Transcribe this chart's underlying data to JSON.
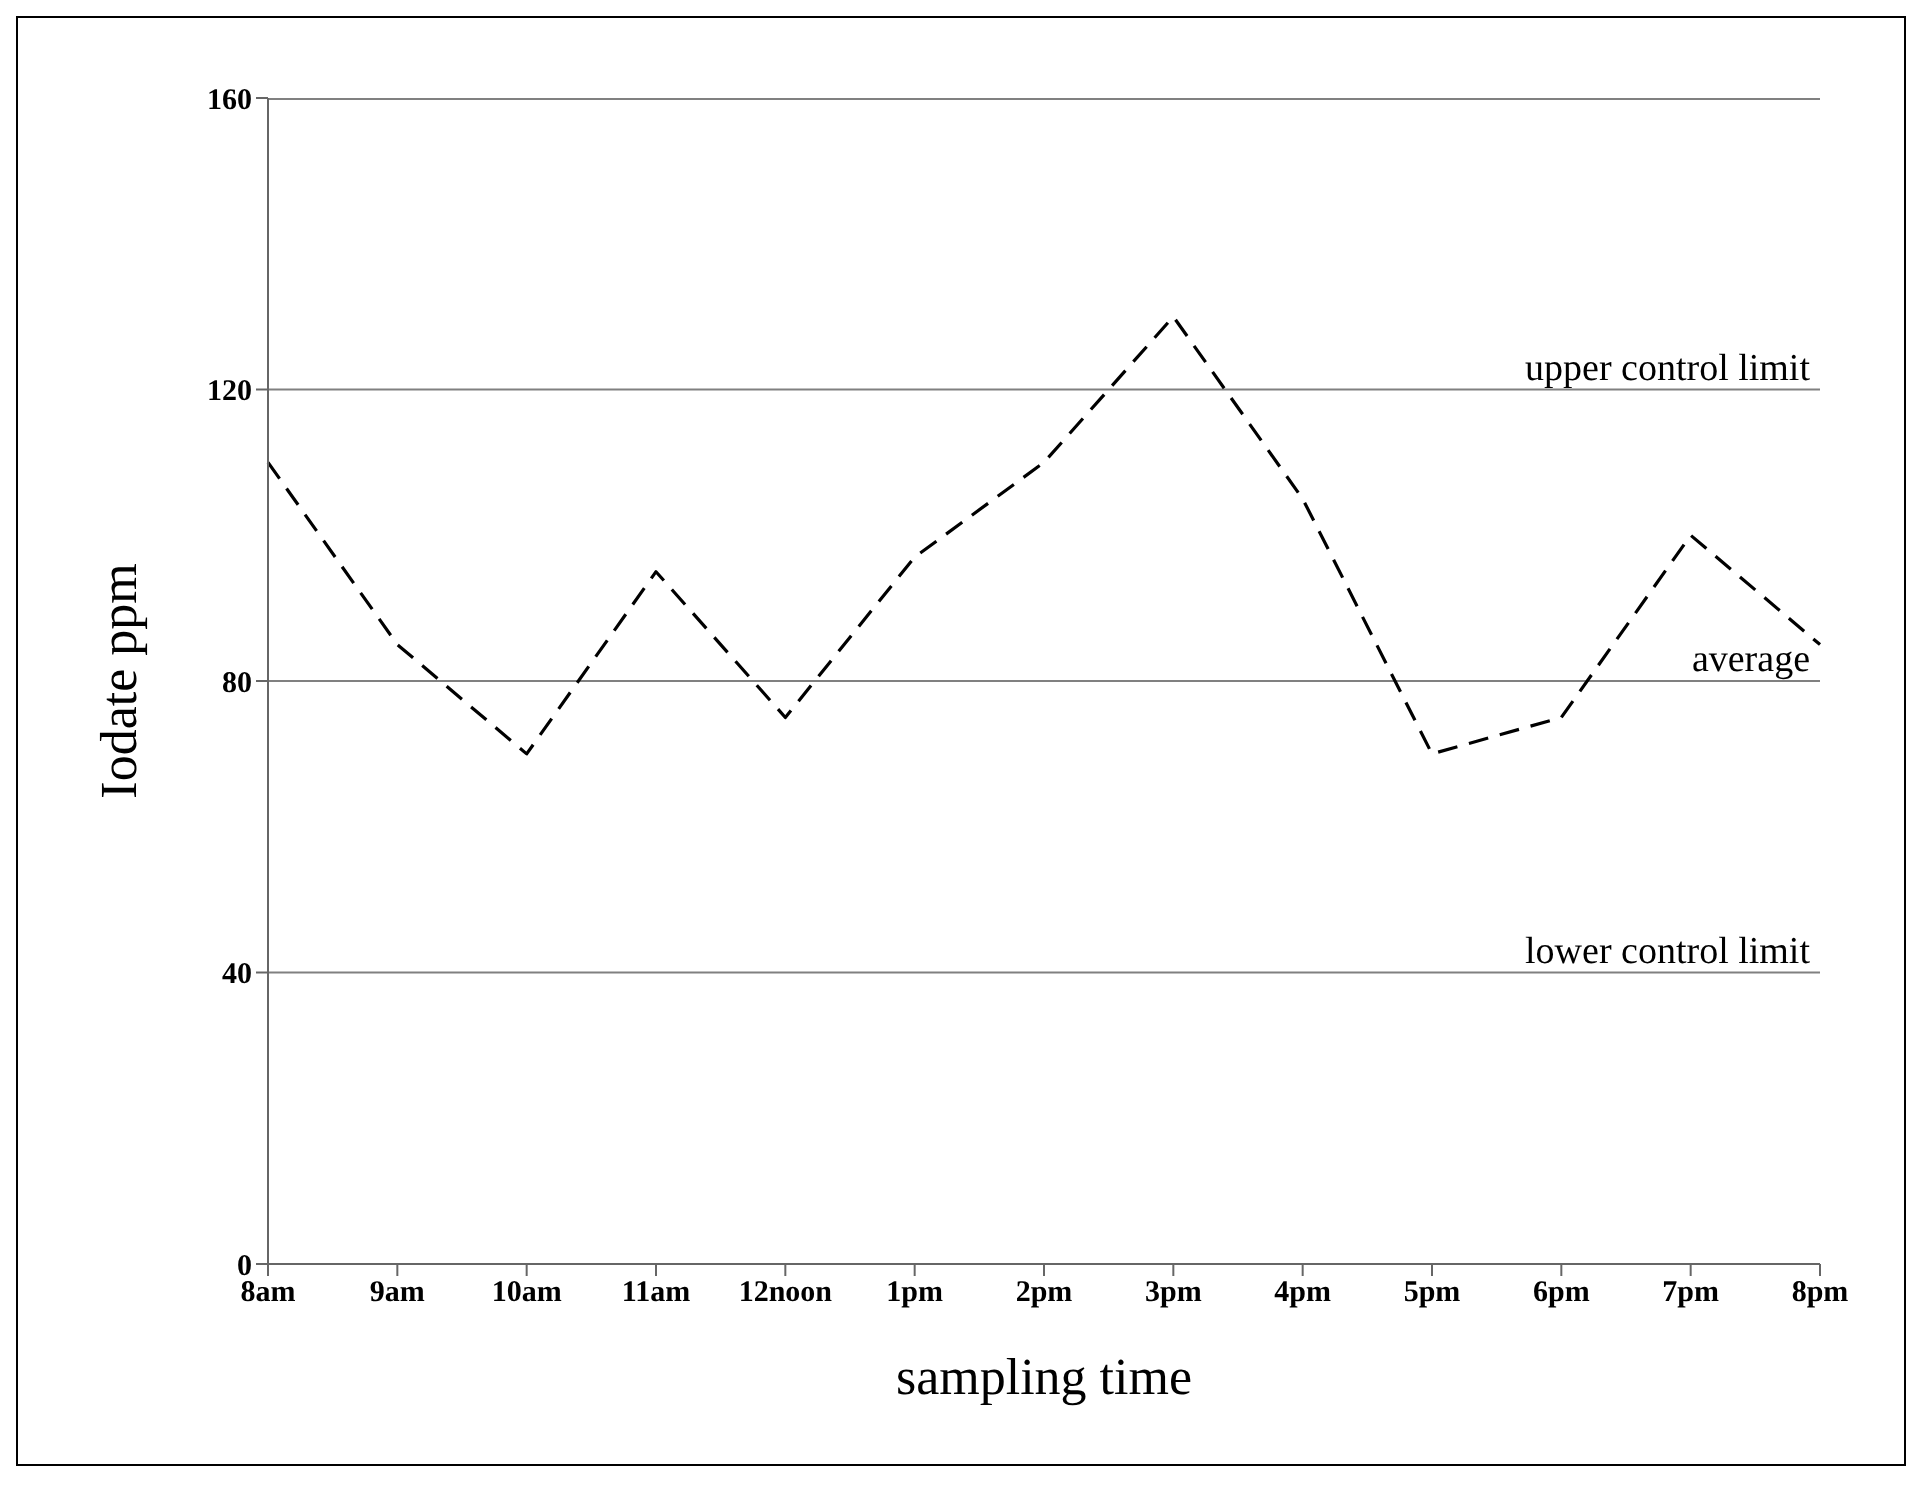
{
  "chart_data": {
    "type": "line",
    "xlabel": "sampling time",
    "ylabel": "Iodate ppm",
    "categories": [
      "8am",
      "9am",
      "10am",
      "11am",
      "12noon",
      "1pm",
      "2pm",
      "3pm",
      "4pm",
      "5pm",
      "6pm",
      "7pm",
      "8pm"
    ],
    "series": [
      {
        "color": "#000000",
        "values": [
          110,
          85,
          70,
          95,
          75,
          97,
          110,
          130,
          105,
          70,
          75,
          100,
          85
        ]
      }
    ],
    "ylim": [
      0,
      160
    ],
    "yticks": [
      0,
      40,
      80,
      120,
      160
    ],
    "legend": false,
    "marker": "none",
    "line_style": "dashed",
    "ref_lines": [
      {
        "axis": "y",
        "value": 120,
        "label": "upper control limit",
        "color": "#808080"
      },
      {
        "axis": "y",
        "value": 80,
        "label": "average",
        "color": "#808080"
      },
      {
        "axis": "y",
        "value": 40,
        "label": "lower control limit",
        "color": "#808080"
      }
    ]
  }
}
